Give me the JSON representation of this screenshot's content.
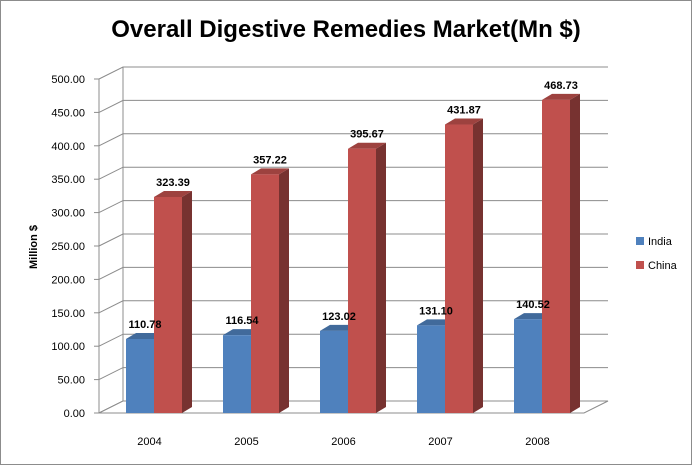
{
  "chart_data": {
    "type": "bar",
    "title": "Overall Digestive Remedies Market(Mn $)",
    "xlabel": "",
    "ylabel": "Million $",
    "categories": [
      "2004",
      "2005",
      "2006",
      "2007",
      "2008"
    ],
    "series": [
      {
        "name": "India",
        "values": [
          110.78,
          116.54,
          123.02,
          131.1,
          140.52
        ],
        "labels": [
          "110.78",
          "116.54",
          "123.02",
          "131.10",
          "140.52"
        ],
        "color": "#4f81bd"
      },
      {
        "name": "China",
        "values": [
          323.39,
          357.22,
          395.67,
          431.87,
          468.73
        ],
        "labels": [
          "323.39",
          "357.22",
          "395.67",
          "431.87",
          "468.73"
        ],
        "color": "#c0504d"
      }
    ],
    "ylim": [
      0,
      500
    ],
    "yticks": [
      "0.00",
      "50.00",
      "100.00",
      "150.00",
      "200.00",
      "250.00",
      "300.00",
      "350.00",
      "400.00",
      "450.00",
      "500.00"
    ],
    "grid": true,
    "legend": "right",
    "style": "3d-column"
  }
}
